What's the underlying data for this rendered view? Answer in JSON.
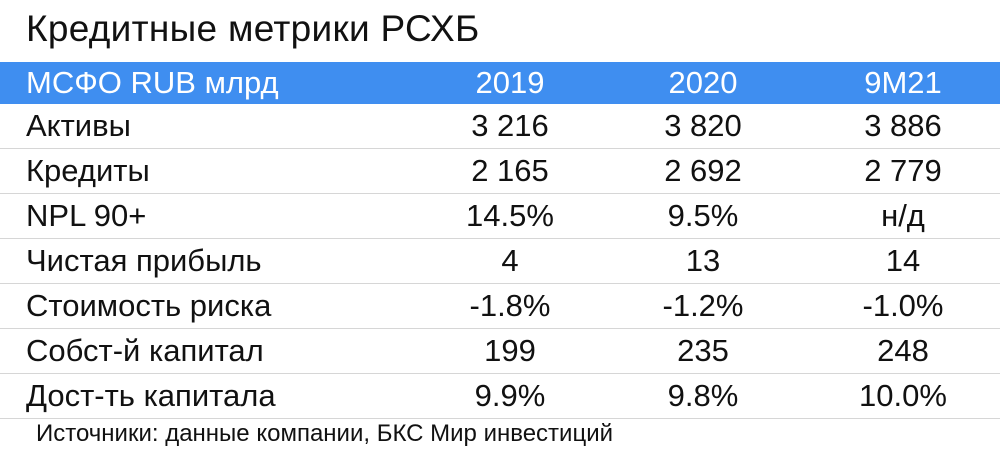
{
  "title": "Кредитные метрики РСХБ",
  "table": {
    "header": [
      "МСФО RUB млрд",
      "2019",
      "2020",
      "9M21"
    ],
    "rows": [
      [
        "Активы",
        "3 216",
        "3 820",
        "3 886"
      ],
      [
        "Кредиты",
        "2 165",
        "2 692",
        "2 779"
      ],
      [
        "NPL 90+",
        "14.5%",
        "9.5%",
        "н/д"
      ],
      [
        "Чистая прибыль",
        "4",
        "13",
        "14"
      ],
      [
        "Стоимость риска",
        "-1.8%",
        "-1.2%",
        "-1.0%"
      ],
      [
        "Собст-й капитал",
        "199",
        "235",
        "248"
      ],
      [
        "Дост-ть капитала",
        "9.9%",
        "9.8%",
        "10.0%"
      ]
    ]
  },
  "source": "Источники: данные компании, БКС Мир инвестиций"
}
